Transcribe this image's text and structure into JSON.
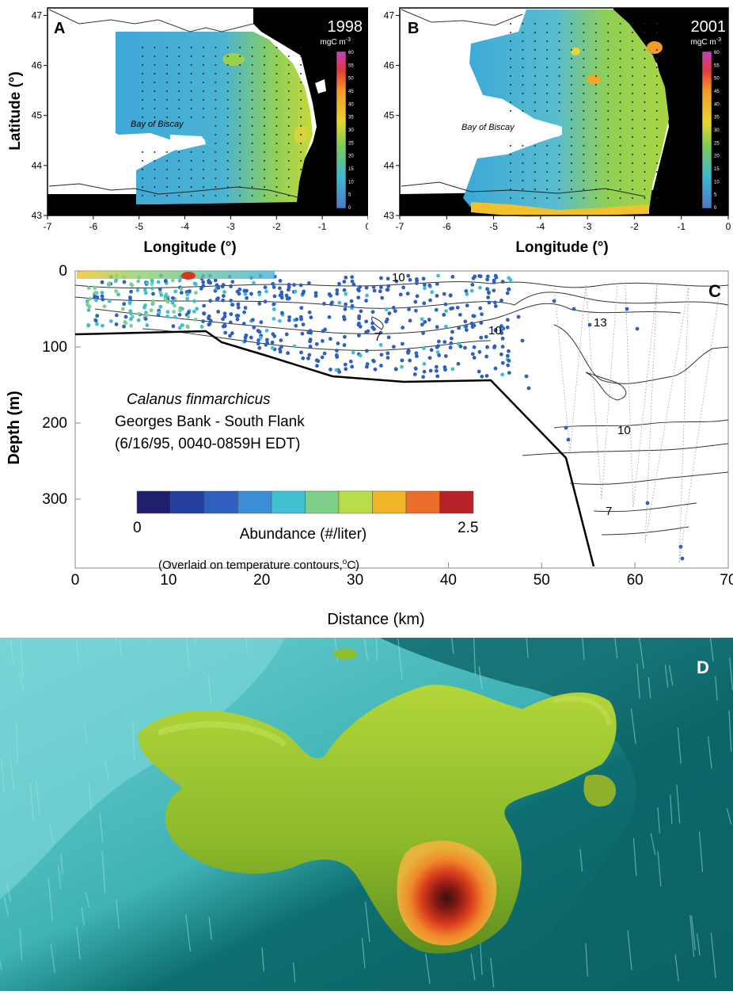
{
  "panels": {
    "A": {
      "letter": "A",
      "year": "1998",
      "unit": "mgC m",
      "unit_sup": "-3",
      "place": "Bay of Biscay",
      "xlabel": "Longitude (°)",
      "xticks": [
        "-7",
        "-6",
        "-5",
        "-4",
        "-3",
        "-2",
        "-1",
        "0"
      ],
      "yticks": [
        "47",
        "46",
        "45",
        "44",
        "43"
      ],
      "cbar_ticks": [
        "60",
        "55",
        "50",
        "45",
        "40",
        "35",
        "30",
        "25",
        "20",
        "15",
        "10",
        "5",
        "0"
      ]
    },
    "B": {
      "letter": "B",
      "year": "2001",
      "unit": "mgC m",
      "unit_sup": "-3",
      "place": "Bay of Biscay",
      "xlabel": "Longitude (°)",
      "xticks": [
        "-7",
        "-6",
        "-5",
        "-4",
        "-3",
        "-2",
        "-1",
        "0"
      ],
      "yticks": [
        "47",
        "46",
        "45",
        "44",
        "43"
      ],
      "cbar_ticks": [
        "60",
        "55",
        "50",
        "45",
        "40",
        "35",
        "30",
        "25",
        "20",
        "15",
        "10",
        "5",
        "0"
      ]
    },
    "AB_ylabel": "Latitude (°)",
    "C": {
      "letter": "C",
      "species": "Calanus finmarchicus",
      "location": "Georges Bank - South Flank",
      "when": "(6/16/95, 0040-0859H EDT)",
      "cbar_min": "0",
      "cbar_max": "2.5",
      "cbar_label": "Abundance (#/liter)",
      "overlay_note": "(Overlaid on temperature contours,",
      "overlay_unit_sup": "o",
      "overlay_unit": "C)",
      "xlabel": "Distance (km)",
      "ylabel": "Depth (m)",
      "xticks": [
        "0",
        "10",
        "20",
        "30",
        "40",
        "50",
        "60",
        "70"
      ],
      "yticks": [
        "0",
        "100",
        "200",
        "300"
      ],
      "contour_labels": [
        "10",
        "7",
        "10",
        "13",
        "10",
        "7"
      ]
    },
    "D": {
      "letter": "D"
    }
  },
  "colors": {
    "land": "#000000",
    "ocean_low": "#3ea9d6",
    "ocean_mid": "#8ccf5a",
    "ocean_high": "#f4b12a",
    "depth_line": "#000000",
    "surface_cyan": "#5fd3d6",
    "surface_dark": "#0b6b6b",
    "blob_green": "#9ccc2e",
    "blob_red": "#d43a1f"
  },
  "cbar_colors": [
    "#1f1f6e",
    "#243f9e",
    "#2f5fbf",
    "#3a8ed6",
    "#3fbfd0",
    "#7fcf8a",
    "#b9dc4a",
    "#f1b52a",
    "#ea6d2a",
    "#b8232a"
  ]
}
